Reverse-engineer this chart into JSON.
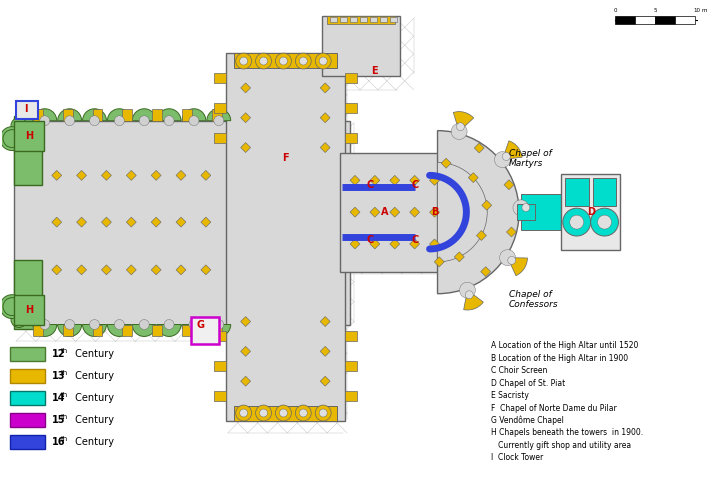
{
  "background_color": "#ffffff",
  "legend_items": [
    {
      "label": "12",
      "color": "#7cbd6b",
      "edge": "#4a7a30"
    },
    {
      "label": "13",
      "color": "#e8b800",
      "edge": "#b08800"
    },
    {
      "label": "14",
      "color": "#00ddcc",
      "edge": "#007a6a"
    },
    {
      "label": "15",
      "color": "#cc00cc",
      "edge": "#880088"
    },
    {
      "label": "16",
      "color": "#3344dd",
      "edge": "#1122aa"
    }
  ],
  "annotations": [
    "A Location of the High Altar until 1520",
    "B Location of the High Altar in 1900",
    "C Choir Screen",
    "D Chapel of St. Piat",
    "E Sacristy",
    "F  Chapel of Norte Dame du Pilar",
    "G Vendôme Chapel",
    "H Chapels beneath the towers  in 1900.",
    "   Currently gift shop and utility area",
    "I  Clock Tower"
  ],
  "chapel_martyrs": "Chapel of\nMartyrs",
  "chapel_confessors": "Chapel of\nConfessors",
  "label_color": "#cc0000",
  "gold": "#e8b800",
  "green": "#7cbd6b",
  "cyan": "#00ddcc",
  "blue": "#3344dd",
  "purple": "#cc00cc",
  "wall": "#888888",
  "lgray": "#d8d8d8",
  "outline": "#666666"
}
